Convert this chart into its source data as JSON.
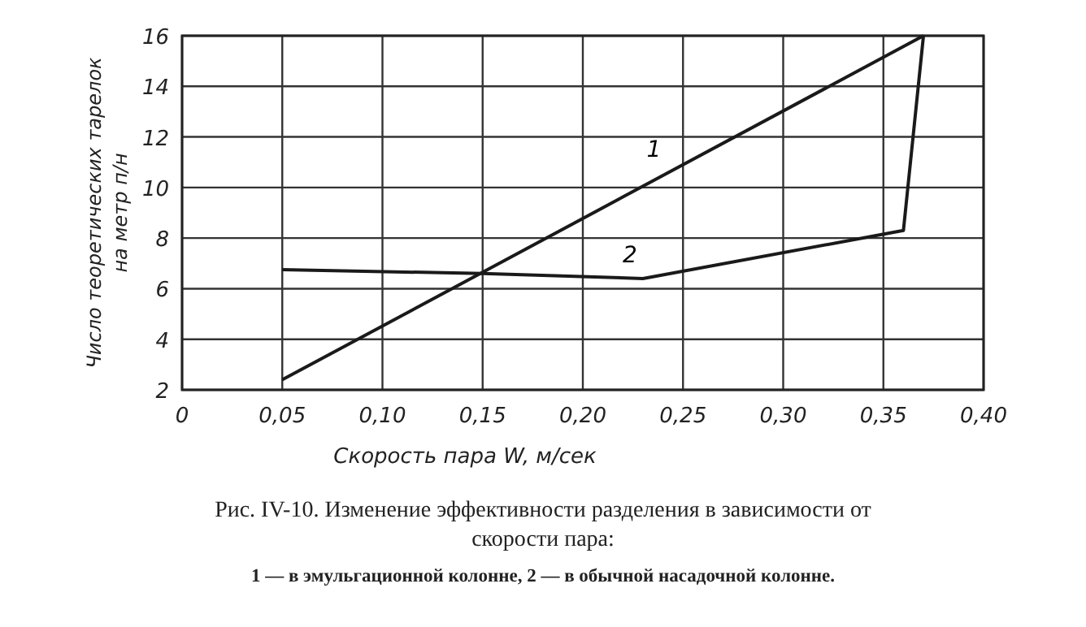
{
  "chart_data": {
    "type": "line",
    "xlabel": "Скорость пара W, м/сек",
    "ylabel": "Число теоретических тарелок на метр п/н",
    "xlim": [
      0,
      0.4
    ],
    "ylim": [
      2,
      16
    ],
    "xticks": [
      0,
      {
        "value": 0.05,
        "label": "0,05"
      },
      {
        "value": 0.1,
        "label": "0,10"
      },
      {
        "value": 0.15,
        "label": "0,15"
      },
      {
        "value": 0.2,
        "label": "0,20"
      },
      {
        "value": 0.25,
        "label": "0,25"
      },
      {
        "value": 0.3,
        "label": "0,30"
      },
      {
        "value": 0.35,
        "label": "0,35"
      },
      {
        "value": 0.4,
        "label": "0,40"
      }
    ],
    "yticks": [
      2,
      4,
      6,
      8,
      10,
      12,
      14,
      16
    ],
    "grid": true,
    "marker": "none",
    "line_style": "solid",
    "series": [
      {
        "name": "1",
        "color": "#1a1a1a",
        "x": [
          0.05,
          0.37
        ],
        "values": [
          2.4,
          16
        ]
      },
      {
        "name": "2",
        "color": "#1a1a1a",
        "x": [
          0.05,
          0.15,
          0.23,
          0.36,
          0.37
        ],
        "values": [
          6.75,
          6.6,
          6.4,
          8.3,
          16
        ]
      }
    ],
    "annotations": [
      "Рис. IV-10. Изменение эффективности разделения в зависимости от скорости пара:",
      "1 — в эмульгационной колонне, 2 — в обычной насадочной колонне."
    ]
  }
}
